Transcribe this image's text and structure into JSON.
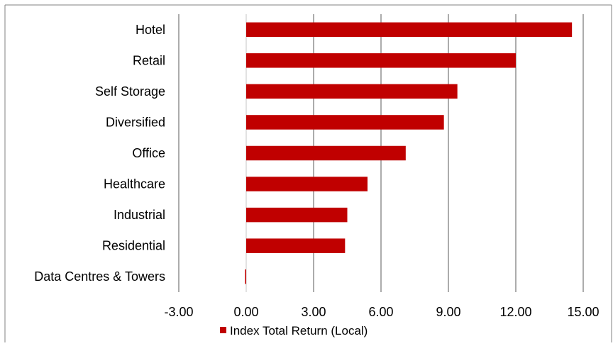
{
  "chart_data": {
    "type": "bar",
    "orientation": "horizontal",
    "title": "",
    "xlabel": "",
    "ylabel": "",
    "categories": [
      "Hotel",
      "Retail",
      "Self Storage",
      "Diversified",
      "Office",
      "Healthcare",
      "Industrial",
      "Residential",
      "Data Centres & Towers"
    ],
    "series": [
      {
        "name": "Index Total Return (Local)",
        "values": [
          14.5,
          12.0,
          9.4,
          8.8,
          7.1,
          5.4,
          4.5,
          4.4,
          -0.05
        ],
        "color": "#C00000"
      }
    ],
    "xlim": [
      -3,
      15
    ],
    "xticks": [
      -3,
      0,
      3,
      6,
      9,
      12,
      15
    ],
    "xtick_labels": [
      "-3.00",
      "0.00",
      "3.00",
      "6.00",
      "9.00",
      "12.00",
      "15.00"
    ],
    "grid": "vertical",
    "legend": "bottom"
  },
  "colors": {
    "bar": "#C00000",
    "grid": "#808080",
    "zero_line": "#D9D9D9",
    "border": "#808080"
  }
}
